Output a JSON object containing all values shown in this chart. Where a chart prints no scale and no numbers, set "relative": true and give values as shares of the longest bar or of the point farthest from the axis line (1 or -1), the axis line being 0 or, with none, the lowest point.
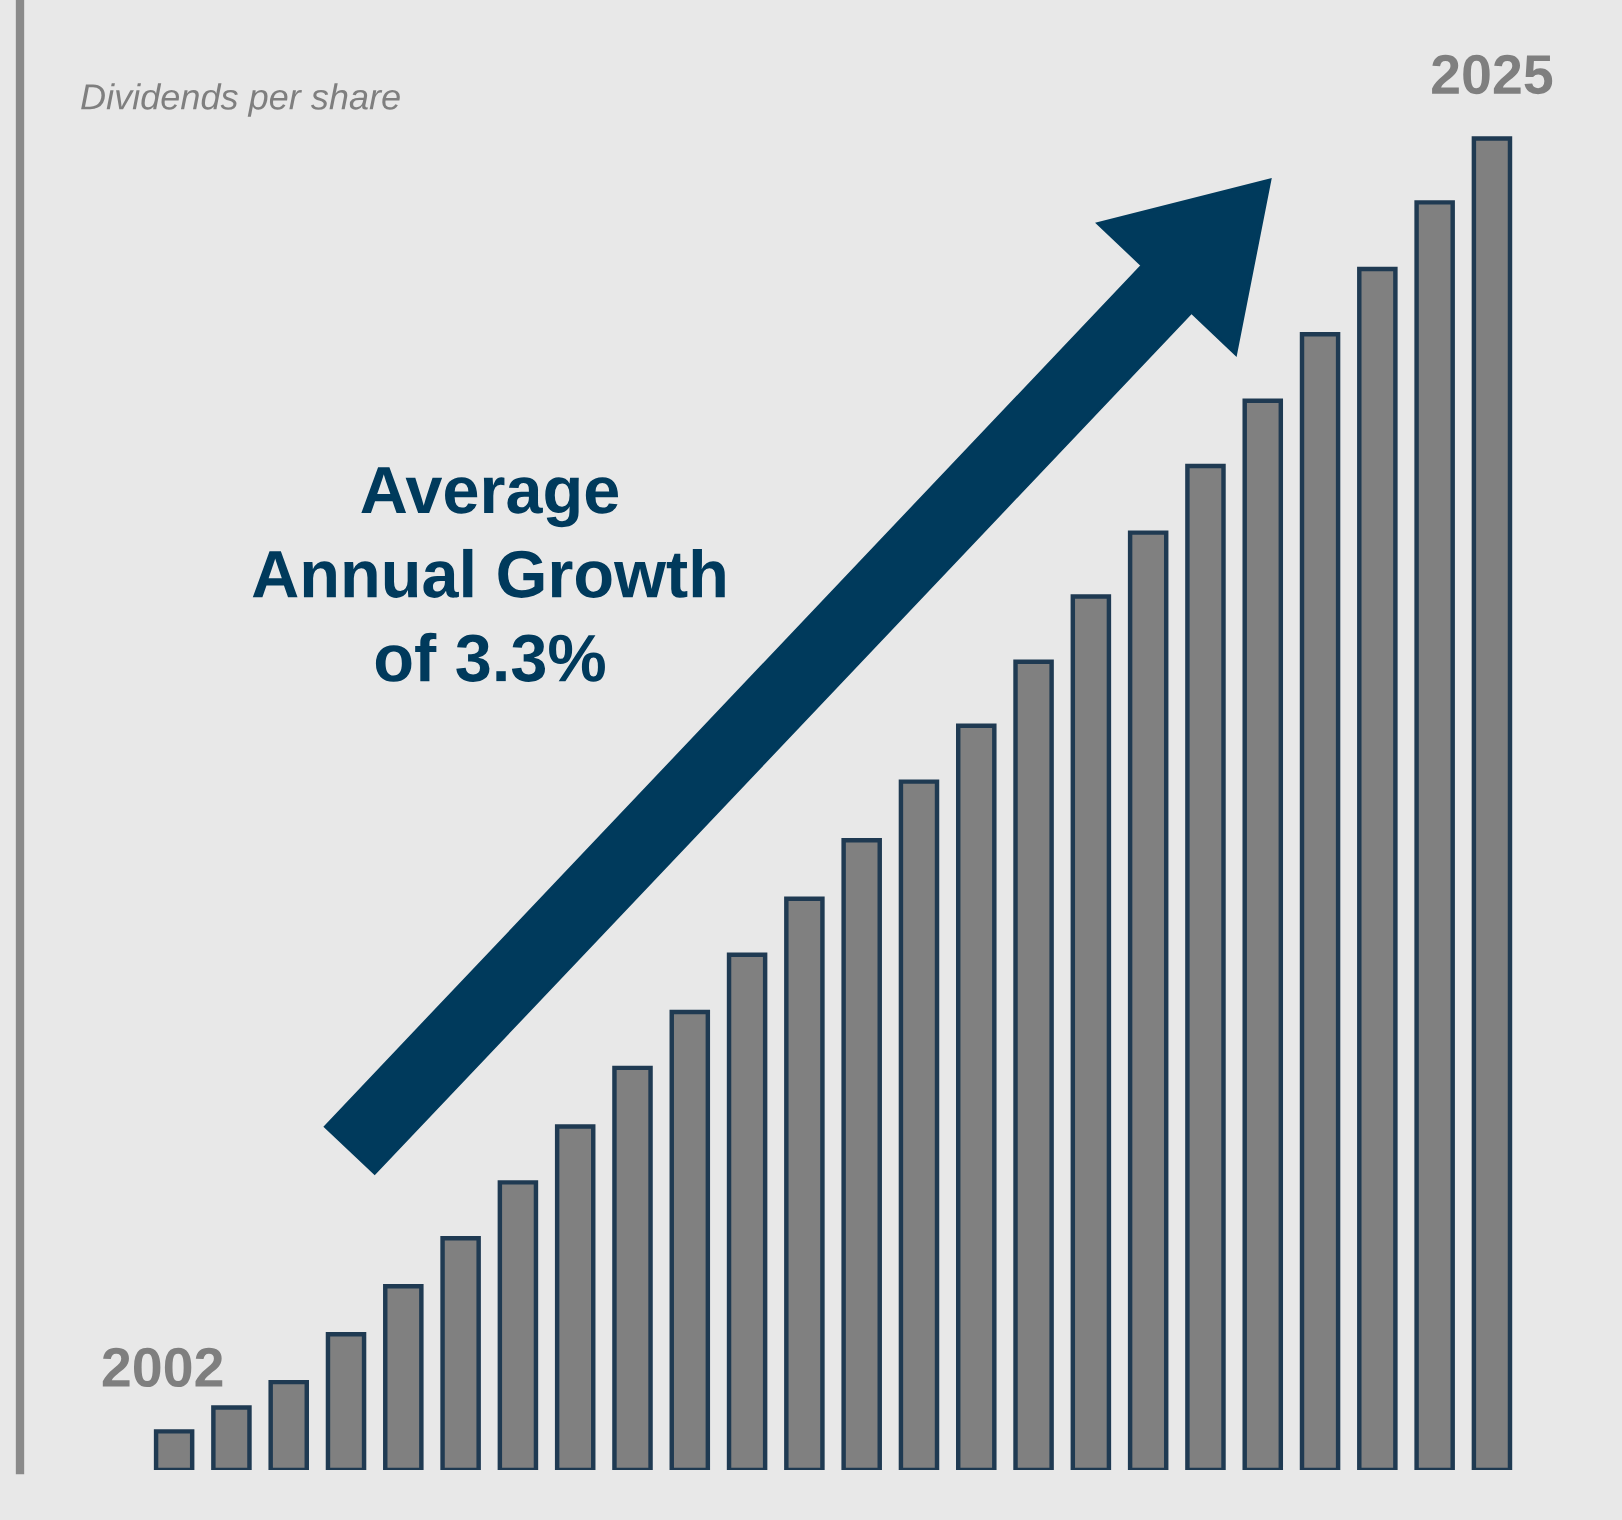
{
  "chart_data": {
    "type": "bar",
    "title": "Dividends per share",
    "categories": [
      "2002",
      null,
      null,
      null,
      null,
      null,
      null,
      null,
      null,
      null,
      null,
      null,
      null,
      null,
      null,
      null,
      null,
      null,
      null,
      null,
      null,
      null,
      null,
      "2025"
    ],
    "relative": true,
    "series": [
      {
        "color": "#808080",
        "values": [
          0.029,
          0.047,
          0.066,
          0.102,
          0.138,
          0.174,
          0.216,
          0.258,
          0.302,
          0.344,
          0.387,
          0.429,
          0.473,
          0.517,
          0.559,
          0.607,
          0.656,
          0.704,
          0.754,
          0.803,
          0.853,
          0.902,
          0.952,
          1
        ]
      }
    ],
    "annotations": [
      "Average\nAnnual Growth\nof 3.3%"
    ],
    "legend": false
  }
}
